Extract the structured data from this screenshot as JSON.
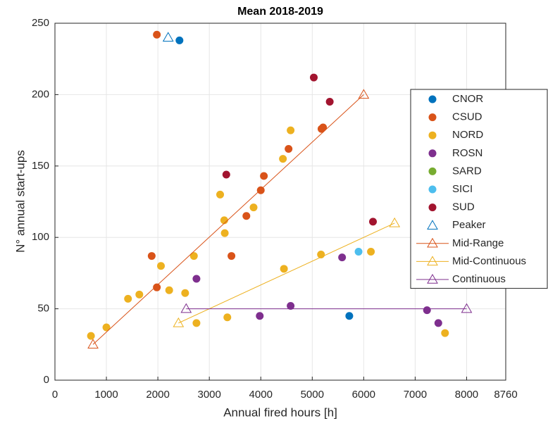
{
  "chart_data": {
    "type": "scatter",
    "title": "Mean 2018-2019",
    "x_label": "Annual fired hours [h]",
    "y_label": "N° annual start-ups",
    "xlim": [
      0,
      8760
    ],
    "xticks": [
      0,
      1000,
      2000,
      3000,
      4000,
      5000,
      6000,
      7000,
      8000,
      8760
    ],
    "ylim": [
      0,
      250
    ],
    "yticks": [
      0,
      50,
      100,
      150,
      200,
      250
    ],
    "grid": true,
    "legend": "right",
    "series": [
      {
        "name": "CNOR",
        "color": "#0072BD",
        "marker": "circle",
        "line": false,
        "x": [
          2420,
          5720
        ],
        "values": [
          238,
          45
        ]
      },
      {
        "name": "CSUD",
        "color": "#D95319",
        "marker": "circle",
        "line": false,
        "x": [
          1980,
          1880,
          1980,
          3720,
          3430,
          4000,
          4060,
          4540,
          5180,
          5210
        ],
        "values": [
          242,
          87,
          65,
          115,
          87,
          133,
          143,
          162,
          176,
          177
        ]
      },
      {
        "name": "NORD",
        "color": "#EDB120",
        "marker": "circle",
        "line": false,
        "x": [
          700,
          1000,
          1420,
          1640,
          2060,
          2220,
          2530,
          2700,
          2750,
          3210,
          3290,
          3300,
          3350,
          3860,
          4430,
          4450,
          4580,
          5170,
          6140,
          7580
        ],
        "values": [
          31,
          37,
          57,
          60,
          80,
          63,
          61,
          87,
          40,
          130,
          112,
          103,
          44,
          121,
          155,
          78,
          175,
          88,
          90,
          33
        ]
      },
      {
        "name": "ROSN",
        "color": "#7E2F8E",
        "marker": "circle",
        "line": false,
        "x": [
          2750,
          3980,
          4580,
          5580,
          7230,
          7450
        ],
        "values": [
          71,
          45,
          52,
          86,
          49,
          40
        ]
      },
      {
        "name": "SARD",
        "color": "#77AC30",
        "marker": "circle",
        "line": false,
        "x": [],
        "values": []
      },
      {
        "name": "SICI",
        "color": "#4DBEEE",
        "marker": "circle",
        "line": false,
        "x": [
          5900
        ],
        "values": [
          90
        ]
      },
      {
        "name": "SUD",
        "color": "#A2142F",
        "marker": "circle",
        "line": false,
        "x": [
          3330,
          5030,
          5340,
          6180
        ],
        "values": [
          144,
          212,
          195,
          111
        ]
      },
      {
        "name": "Peaker",
        "color": "#0072BD",
        "marker": "triangle",
        "line": false,
        "x": [
          2200
        ],
        "values": [
          240
        ]
      },
      {
        "name": "Mid-Range",
        "color": "#D95319",
        "marker": "triangle",
        "line": true,
        "x": [
          740,
          6000
        ],
        "values": [
          25,
          200
        ]
      },
      {
        "name": "Mid-Continuous",
        "color": "#EDB120",
        "marker": "triangle",
        "line": true,
        "x": [
          2400,
          6600
        ],
        "values": [
          40,
          110
        ]
      },
      {
        "name": "Continuous",
        "color": "#7E2F8E",
        "marker": "triangle",
        "line": true,
        "x": [
          2550,
          8000
        ],
        "values": [
          50,
          50
        ]
      }
    ]
  }
}
